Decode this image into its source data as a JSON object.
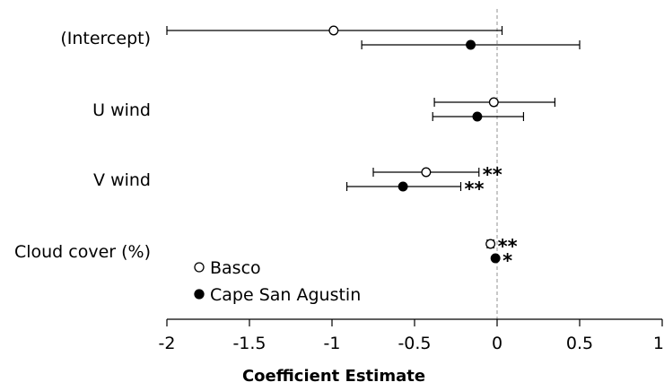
{
  "chart_data": {
    "type": "scatter",
    "subtype": "coefficient-plot-with-error-bars",
    "title": "",
    "xlabel": "Coefficient Estimate",
    "ylabel": "",
    "xlim": [
      -2,
      1
    ],
    "xticks": [
      -2,
      -1.5,
      -1,
      -0.5,
      0,
      0.5,
      1
    ],
    "xtick_labels": [
      "-2",
      "-1.5",
      "-1",
      "-0.5",
      "0",
      "0.5",
      "1"
    ],
    "reference_line": {
      "x": 0,
      "style": "dashed",
      "color": "#aaaaaa"
    },
    "grid": false,
    "legend_position": "bottom-left",
    "categories": [
      "(Intercept)",
      "U wind",
      "V wind",
      "Cloud cover (%)"
    ],
    "series": [
      {
        "name": "Basco",
        "marker": "open-circle",
        "points": [
          {
            "category": "(Intercept)",
            "estimate": -0.99,
            "low": -2.0,
            "high": 0.03,
            "sig": ""
          },
          {
            "category": "U wind",
            "estimate": -0.02,
            "low": -0.38,
            "high": 0.35,
            "sig": ""
          },
          {
            "category": "V wind",
            "estimate": -0.43,
            "low": -0.75,
            "high": -0.11,
            "sig": "**"
          },
          {
            "category": "Cloud cover (%)",
            "estimate": -0.04,
            "low": -0.06,
            "high": -0.02,
            "sig": "**"
          }
        ]
      },
      {
        "name": "Cape San Agustin",
        "marker": "filled-circle",
        "points": [
          {
            "category": "(Intercept)",
            "estimate": -0.16,
            "low": -0.82,
            "high": 0.5,
            "sig": ""
          },
          {
            "category": "U wind",
            "estimate": -0.12,
            "low": -0.39,
            "high": 0.16,
            "sig": ""
          },
          {
            "category": "V wind",
            "estimate": -0.57,
            "low": -0.91,
            "high": -0.22,
            "sig": "**"
          },
          {
            "category": "Cloud cover (%)",
            "estimate": -0.01,
            "low": -0.01,
            "high": -0.01,
            "sig": "*"
          }
        ]
      }
    ]
  }
}
